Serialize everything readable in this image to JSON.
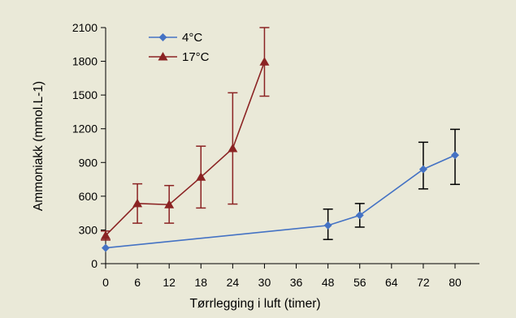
{
  "chart_data": {
    "type": "line",
    "xlabel": "Tørrlegging i luft (timer)",
    "ylabel": "Ammoniakk (mmol.L-1)",
    "x_ticks": [
      "0",
      "6",
      "12",
      "18",
      "24",
      "30",
      "36",
      "48",
      "56",
      "64",
      "72",
      "80"
    ],
    "y_ticks": [
      "0",
      "300",
      "600",
      "900",
      "1200",
      "1500",
      "1800",
      "2100"
    ],
    "ylim": [
      0,
      2100
    ],
    "grid": false,
    "legend_position": "top-left",
    "series": [
      {
        "name": "4°C",
        "color": "#4472c4",
        "marker": "diamond",
        "errorbar_color": "#000000",
        "points": [
          {
            "x": 0,
            "y": 140,
            "err_low": 140,
            "err_high": 140
          },
          {
            "x": 48,
            "y": 340,
            "err_low": 215,
            "err_high": 485
          },
          {
            "x": 56,
            "y": 430,
            "err_low": 325,
            "err_high": 535
          },
          {
            "x": 72,
            "y": 840,
            "err_low": 665,
            "err_high": 1080
          },
          {
            "x": 80,
            "y": 965,
            "err_low": 705,
            "err_high": 1195
          }
        ]
      },
      {
        "name": "17°C",
        "color": "#8b2323",
        "marker": "triangle",
        "errorbar_color": "#8b2323",
        "points": [
          {
            "x": 0,
            "y": 250,
            "err_low": 210,
            "err_high": 290
          },
          {
            "x": 6,
            "y": 535,
            "err_low": 360,
            "err_high": 710
          },
          {
            "x": 12,
            "y": 525,
            "err_low": 360,
            "err_high": 695
          },
          {
            "x": 18,
            "y": 770,
            "err_low": 495,
            "err_high": 1045
          },
          {
            "x": 24,
            "y": 1025,
            "err_low": 530,
            "err_high": 1520
          },
          {
            "x": 30,
            "y": 1795,
            "err_low": 1490,
            "err_high": 2100
          }
        ]
      }
    ]
  }
}
